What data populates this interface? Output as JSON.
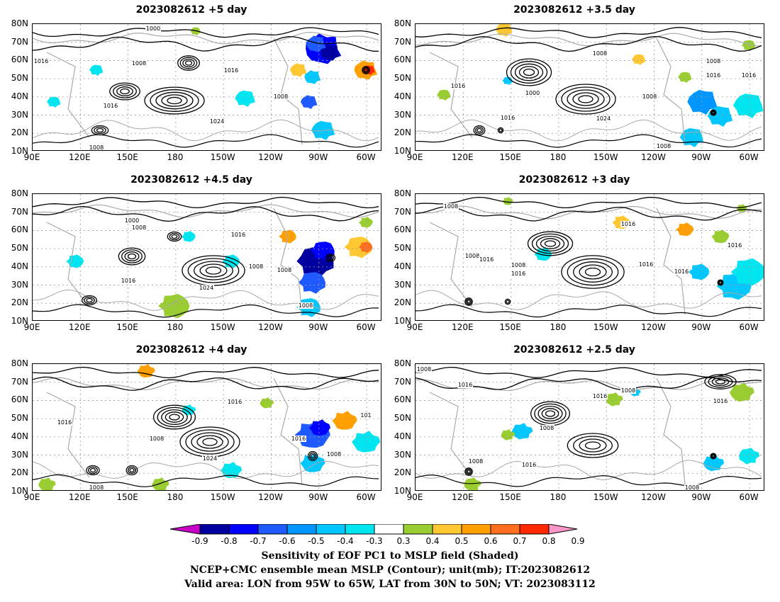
{
  "panels": [
    {
      "title": "2023082612  +5 day",
      "contour_labels": [
        "1000",
        "1008",
        "1016",
        "1016",
        "1016",
        "1024",
        "1008",
        "1008"
      ]
    },
    {
      "title": "2023082612  +3.5 day",
      "contour_labels": [
        "1008",
        "1016",
        "1000",
        "1016",
        "1024",
        "1008",
        "1016",
        "1008",
        "1008",
        "1016"
      ]
    },
    {
      "title": "2023082612  +4.5 day",
      "contour_labels": [
        "1000",
        "1008",
        "1016",
        "1016",
        "1024",
        "1008",
        "1008",
        "1008"
      ]
    },
    {
      "title": "2023082612  +3 day",
      "contour_labels": [
        "1008",
        "1016",
        "1008",
        "1016",
        "1008",
        "1016",
        "1016",
        "1016",
        "1016"
      ]
    },
    {
      "title": "2023082612  +4 day",
      "contour_labels": [
        "1016",
        "1016",
        "1008",
        "1024",
        "1016",
        "1008",
        "101",
        "1008"
      ]
    },
    {
      "title": "2023082612  +2.5 day",
      "contour_labels": [
        "1008",
        "1016",
        "1016",
        "1008",
        "1008",
        "1008",
        "1016",
        "1008",
        "1016"
      ]
    }
  ],
  "lat_labels": [
    "80N",
    "70N",
    "60N",
    "50N",
    "40N",
    "30N",
    "20N",
    "10N"
  ],
  "lon_labels": [
    "90E",
    "120E",
    "150E",
    "180",
    "150W",
    "120W",
    "90W",
    "60W"
  ],
  "colorbar": {
    "ticks": [
      "-0.9",
      "-0.8",
      "-0.7",
      "-0.6",
      "-0.5",
      "-0.4",
      "-0.3",
      "0.3",
      "0.4",
      "0.5",
      "0.6",
      "0.7",
      "0.8",
      "0.9"
    ],
    "colors": [
      "#c800c8",
      "#0000a0",
      "#0000ff",
      "#1e5aff",
      "#0096ff",
      "#00c8ff",
      "#00e6f0",
      "#ffffff",
      "#9acd32",
      "#ffc832",
      "#ffa000",
      "#ff6e1e",
      "#ff2800",
      "#ff96c8"
    ]
  },
  "caption": {
    "line1": "Sensitivity of EOF PC1 to MSLP field (Shaded)",
    "line2": "NCEP+CMC ensemble mean MSLP (Contour); unit(mb); IT:2023082612",
    "line3": "Valid area: LON from 95W to 65W, LAT from 30N to 50N; VT: 2023083112"
  }
}
